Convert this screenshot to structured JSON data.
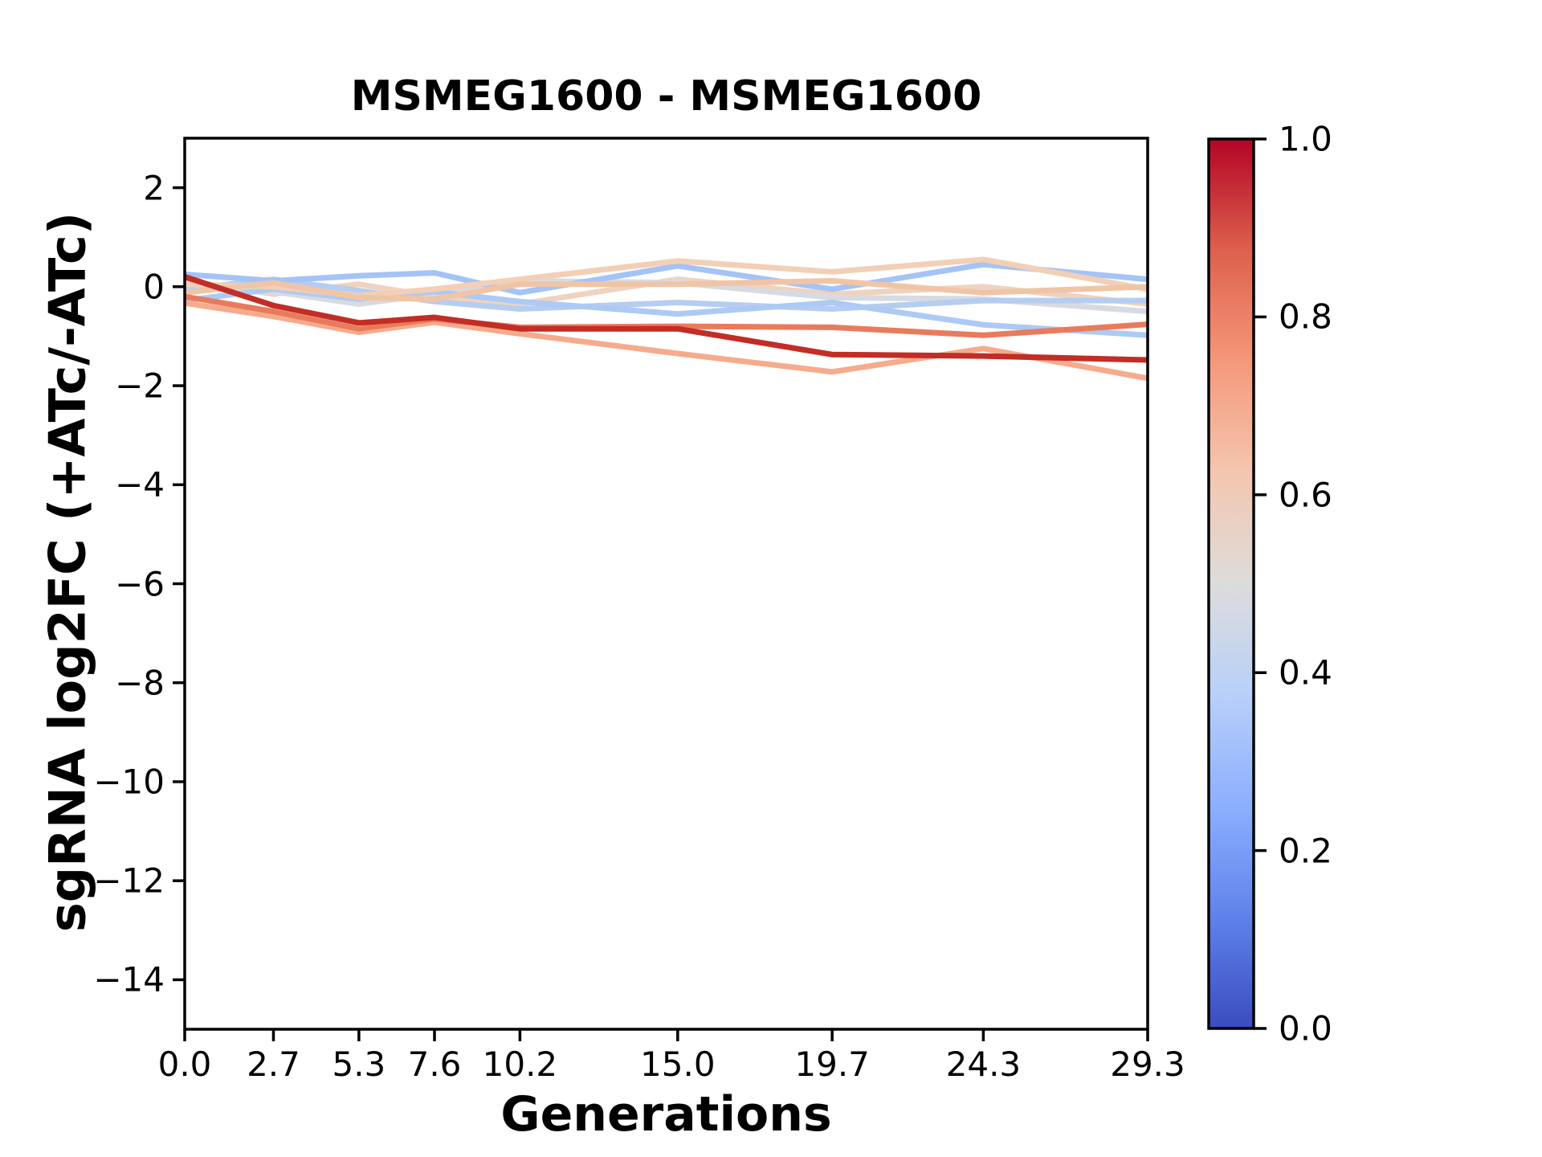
{
  "chart": {
    "title": "MSMEG1600 - MSMEG1600",
    "xlabel": "Generations",
    "ylabel": "sgRNA log2FC (+ATc/-ATc)"
  },
  "chart_data": {
    "type": "line",
    "title": "MSMEG1600 - MSMEG1600",
    "xlabel": "Generations",
    "ylabel": "sgRNA log2FC (+ATc/-ATc)",
    "x": [
      0.0,
      2.7,
      5.3,
      7.6,
      10.2,
      15.0,
      19.7,
      24.3,
      29.3
    ],
    "xtick_labels": [
      "0.0",
      "2.7",
      "5.3",
      "7.6",
      "10.2",
      "15.0",
      "19.7",
      "24.3",
      "29.3"
    ],
    "ytick_values": [
      2,
      0,
      -2,
      -4,
      -6,
      -8,
      -10,
      -12,
      -14
    ],
    "ytick_labels": [
      "2",
      "0",
      "−2",
      "−4",
      "−6",
      "−8",
      "−10",
      "−12",
      "−14"
    ],
    "xlim": [
      0.0,
      29.3
    ],
    "ylim": [
      -15.0,
      3.0
    ],
    "grid": false,
    "legend_position": "none",
    "background": "#ffffff",
    "axis_color": "#000000",
    "series": [
      {
        "name": "line_07",
        "colormap_value": 0.56,
        "color": "#eed3c0",
        "values": [
          0.12,
          -0.15,
          0.05,
          -0.2,
          -0.35,
          0.15,
          -0.15,
          0.0,
          -0.35
        ]
      },
      {
        "name": "line_04",
        "colormap_value": 0.5,
        "color": "#d8dae2",
        "values": [
          0.0,
          -0.1,
          -0.35,
          -0.15,
          0.12,
          0.08,
          -0.22,
          -0.25,
          -0.5
        ]
      },
      {
        "name": "line_02",
        "colormap_value": 0.42,
        "color": "#b5cdf0",
        "values": [
          -0.05,
          0.15,
          -0.08,
          -0.3,
          -0.45,
          -0.32,
          -0.45,
          -0.28,
          -0.28
        ]
      },
      {
        "name": "line_01",
        "colormap_value": 0.38,
        "color": "#a4c3f6",
        "values": [
          0.25,
          0.12,
          0.22,
          0.28,
          -0.12,
          0.42,
          -0.05,
          0.45,
          0.15
        ]
      },
      {
        "name": "line_03",
        "colormap_value": 0.4,
        "color": "#accaf4",
        "values": [
          -0.28,
          -0.05,
          -0.25,
          -0.1,
          -0.3,
          -0.55,
          -0.32,
          -0.77,
          -0.98
        ]
      },
      {
        "name": "line_05",
        "colormap_value": 0.58,
        "color": "#f2cfb6",
        "values": [
          0.05,
          0.0,
          -0.18,
          -0.05,
          0.15,
          0.52,
          0.3,
          0.55,
          -0.05
        ]
      },
      {
        "name": "line_06",
        "colormap_value": 0.61,
        "color": "#f0c5a6",
        "values": [
          -0.12,
          0.08,
          -0.22,
          -0.25,
          0.05,
          0.05,
          0.12,
          -0.12,
          0.0
        ]
      },
      {
        "name": "line_08",
        "colormap_value": 0.68,
        "color": "#f6ab8c",
        "values": [
          -0.33,
          -0.6,
          -0.92,
          -0.72,
          -0.95,
          -1.35,
          -1.72,
          -1.25,
          -1.85
        ]
      },
      {
        "name": "line_09",
        "colormap_value": 0.79,
        "color": "#e97b5d",
        "values": [
          -0.2,
          -0.5,
          -0.85,
          -0.65,
          -0.82,
          -0.8,
          -0.82,
          -0.98,
          -0.76
        ]
      },
      {
        "name": "line_10",
        "colormap_value": 0.97,
        "color": "#c22d26",
        "values": [
          0.2,
          -0.38,
          -0.73,
          -0.62,
          -0.85,
          -0.85,
          -1.37,
          -1.4,
          -1.48
        ]
      }
    ],
    "colorbar": {
      "colormap": "coolwarm",
      "tick_labels": [
        "1.0",
        "0.8",
        "0.6",
        "0.4",
        "0.2",
        "0.0"
      ],
      "tick_values": [
        1.0,
        0.8,
        0.6,
        0.4,
        0.2,
        0.0
      ],
      "range": [
        0.0,
        1.0
      ],
      "gradient_stops_top_to_bottom": [
        "#b40426",
        "#dd604d",
        "#f4987a",
        "#f4c6af",
        "#dddcdc",
        "#b8d0f9",
        "#8caffe",
        "#5f82ea",
        "#3b4cc0"
      ]
    }
  }
}
